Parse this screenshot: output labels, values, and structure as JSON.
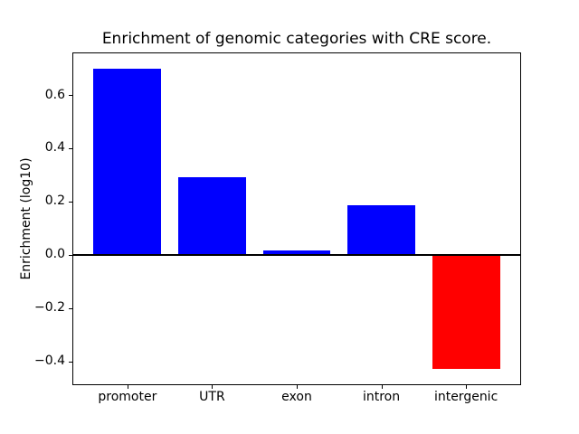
{
  "chart_data": {
    "type": "bar",
    "title": "Enrichment of genomic categories with CRE score.",
    "xlabel": "",
    "ylabel": "Enrichment (log10)",
    "categories": [
      "promoter",
      "UTR",
      "exon",
      "intron",
      "intergenic"
    ],
    "values": [
      0.7,
      0.29,
      0.015,
      0.185,
      -0.43
    ],
    "bar_colors": [
      "#0000ff",
      "#0000ff",
      "#0000ff",
      "#0000ff",
      "#ff0000"
    ],
    "colors": {
      "positive_bar": "#0000ff",
      "negative_bar": "#ff0000",
      "axis": "#000000",
      "background": "#ffffff"
    },
    "ylim": [
      -0.4865,
      0.7565
    ],
    "xlim": [
      -0.64,
      4.64
    ],
    "bar_width": 0.8,
    "yticks": [
      {
        "value": 0.6,
        "label": "0.6"
      },
      {
        "value": 0.4,
        "label": "0.4"
      },
      {
        "value": 0.2,
        "label": "0.2"
      },
      {
        "value": 0.0,
        "label": "0.0"
      },
      {
        "value": -0.2,
        "label": "−0.2"
      },
      {
        "value": -0.4,
        "label": "−0.4"
      }
    ],
    "zero_line": true,
    "grid": false,
    "legend": null
  }
}
